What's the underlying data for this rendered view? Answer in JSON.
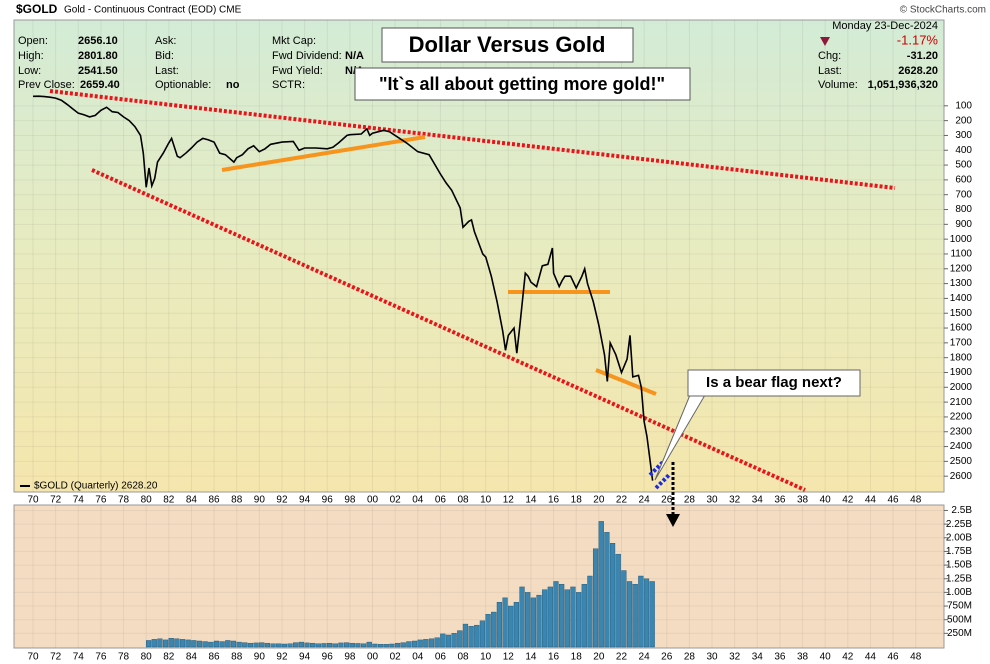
{
  "header": {
    "symbol": "$GOLD",
    "description": "Gold - Continuous Contract (EOD) CME",
    "credit": "© StockCharts.com",
    "date": "Monday 23-Dec-2024",
    "change_pct": "-1.17%"
  },
  "info": [
    {
      "label": "Open:",
      "value": "2656.10"
    },
    {
      "label": "High:",
      "value": "2801.80"
    },
    {
      "label": "Low:",
      "value": "2541.50"
    },
    {
      "label": "Prev Close:",
      "value": "2659.40"
    },
    {
      "label": "Ask:"
    },
    {
      "label": "Bid:"
    },
    {
      "label": "Last:"
    },
    {
      "label": "Optionable:",
      "value": "no"
    },
    {
      "label": "Mkt Cap:"
    },
    {
      "label": "Fwd Dividend:",
      "value": "N/A"
    },
    {
      "label": "Fwd Yield:",
      "value": "N/A"
    },
    {
      "label": "SCTR:"
    },
    {
      "label": "Chg:",
      "value": "-31.20"
    },
    {
      "label": "Last:",
      "value": "2628.20"
    },
    {
      "label": "Volume:",
      "value": "1,051,936,320"
    }
  ],
  "annotations": {
    "title": "Dollar Versus Gold",
    "quote": "\"It`s all about getting more gold!\"",
    "callout": "Is a bear flag next?"
  },
  "chart_data": [
    {
      "type": "line",
      "yinverted": true,
      "grid": true,
      "xlim": [
        1968.32,
        2050.5
      ],
      "xticks": [
        {
          "value": 1970,
          "label": "70"
        },
        {
          "value": 1972,
          "label": "72"
        },
        {
          "value": 1974,
          "label": "74"
        },
        {
          "value": 1976,
          "label": "76"
        },
        {
          "value": 1978,
          "label": "78"
        },
        {
          "value": 1980,
          "label": "80"
        },
        {
          "value": 1982,
          "label": "82"
        },
        {
          "value": 1984,
          "label": "84"
        },
        {
          "value": 1986,
          "label": "86"
        },
        {
          "value": 1988,
          "label": "88"
        },
        {
          "value": 1990,
          "label": "90"
        },
        {
          "value": 1992,
          "label": "92"
        },
        {
          "value": 1994,
          "label": "94"
        },
        {
          "value": 1996,
          "label": "96"
        },
        {
          "value": 1998,
          "label": "98"
        },
        {
          "value": 2000,
          "label": "00"
        },
        {
          "value": 2002,
          "label": "02"
        },
        {
          "value": 2004,
          "label": "04"
        },
        {
          "value": 2006,
          "label": "06"
        },
        {
          "value": 2008,
          "label": "08"
        },
        {
          "value": 2010,
          "label": "10"
        },
        {
          "value": 2012,
          "label": "12"
        },
        {
          "value": 2014,
          "label": "14"
        },
        {
          "value": 2016,
          "label": "16"
        },
        {
          "value": 2018,
          "label": "18"
        },
        {
          "value": 2020,
          "label": "20"
        },
        {
          "value": 2022,
          "label": "22"
        },
        {
          "value": 2024,
          "label": "24"
        },
        {
          "value": 2026,
          "label": "26"
        },
        {
          "value": 2028,
          "label": "28"
        },
        {
          "value": 2030,
          "label": "30"
        },
        {
          "value": 2032,
          "label": "32"
        },
        {
          "value": 2034,
          "label": "34"
        },
        {
          "value": 2036,
          "label": "36"
        },
        {
          "value": 2038,
          "label": "38"
        },
        {
          "value": 2040,
          "label": "40"
        },
        {
          "value": 2042,
          "label": "42"
        },
        {
          "value": 2044,
          "label": "44"
        },
        {
          "value": 2046,
          "label": "46"
        },
        {
          "value": 2048,
          "label": "48"
        }
      ],
      "ylim": [
        0,
        2700
      ],
      "yticks": [
        100,
        200,
        300,
        400,
        500,
        600,
        700,
        800,
        900,
        1000,
        1100,
        1200,
        1300,
        1400,
        1500,
        1600,
        1700,
        1800,
        1900,
        2000,
        2100,
        2200,
        2300,
        2400,
        2500,
        2600
      ],
      "x": [
        1970,
        1970.5,
        1971,
        1971.5,
        1972,
        1972.5,
        1973,
        1973.5,
        1974,
        1974.5,
        1975,
        1975.5,
        1976,
        1976.5,
        1977,
        1977.5,
        1978,
        1978.5,
        1979,
        1979.5,
        1979.75,
        1980,
        1980.25,
        1980.5,
        1980.75,
        1981,
        1981.5,
        1982,
        1982.25,
        1982.75,
        1983,
        1983.5,
        1984,
        1984.5,
        1985,
        1985.5,
        1986,
        1986.5,
        1987,
        1987.75,
        1988,
        1988.5,
        1989,
        1989.5,
        1990,
        1990.5,
        1991,
        1992,
        1993,
        1993.5,
        1994,
        1995,
        1996,
        1996.5,
        1997,
        1997.75,
        1998,
        1999,
        1999.5,
        1999.75,
        2000,
        2001,
        2001.5,
        2002,
        2003,
        2004,
        2005,
        2006,
        2006.5,
        2007,
        2007.75,
        2008,
        2008.5,
        2008.75,
        2009,
        2009.75,
        2010,
        2010.5,
        2011,
        2011.5,
        2011.75,
        2012,
        2012.5,
        2012.75,
        2013,
        2013.5,
        2013.75,
        2014,
        2014.5,
        2015,
        2015.5,
        2015.9,
        2016,
        2016.5,
        2016.75,
        2017,
        2017.5,
        2018,
        2018.5,
        2018.75,
        2019,
        2019.5,
        2019.75,
        2020,
        2020.5,
        2020.75,
        2021,
        2021.5,
        2022,
        2022.5,
        2022.75,
        2023,
        2023.5,
        2023.75,
        2024,
        2024.25,
        2024.5,
        2024.75
      ],
      "series": [
        {
          "name": "$GOLD (Quarterly) 2628.20",
          "color": "#000000",
          "values": [
            36,
            35,
            38,
            42,
            48,
            62,
            90,
            120,
            150,
            160,
            175,
            165,
            130,
            110,
            140,
            145,
            175,
            200,
            240,
            300,
            420,
            650,
            520,
            640,
            590,
            480,
            420,
            350,
            320,
            440,
            450,
            420,
            385,
            345,
            320,
            330,
            345,
            420,
            430,
            480,
            450,
            430,
            390,
            370,
            410,
            390,
            360,
            345,
            340,
            400,
            385,
            385,
            390,
            380,
            350,
            300,
            295,
            290,
            255,
            300,
            285,
            265,
            275,
            300,
            350,
            410,
            430,
            560,
            620,
            670,
            790,
            920,
            880,
            870,
            950,
            1100,
            1120,
            1250,
            1420,
            1620,
            1750,
            1650,
            1600,
            1770,
            1600,
            1230,
            1250,
            1290,
            1320,
            1180,
            1170,
            1060,
            1230,
            1320,
            1280,
            1250,
            1250,
            1330,
            1250,
            1200,
            1300,
            1420,
            1500,
            1580,
            1780,
            1960,
            1700,
            1780,
            1900,
            1810,
            1650,
            1930,
            1920,
            2000,
            2230,
            2330,
            2480,
            2630
          ]
        }
      ]
    },
    {
      "type": "bar",
      "color": "#3a86b0",
      "grid": true,
      "xlim": [
        1968.32,
        2050.5
      ],
      "xticks": [
        {
          "value": 1970,
          "label": "70"
        },
        {
          "value": 1972,
          "label": "72"
        },
        {
          "value": 1974,
          "label": "74"
        },
        {
          "value": 1976,
          "label": "76"
        },
        {
          "value": 1978,
          "label": "78"
        },
        {
          "value": 1980,
          "label": "80"
        },
        {
          "value": 1982,
          "label": "82"
        },
        {
          "value": 1984,
          "label": "84"
        },
        {
          "value": 1986,
          "label": "86"
        },
        {
          "value": 1988,
          "label": "88"
        },
        {
          "value": 1990,
          "label": "90"
        },
        {
          "value": 1992,
          "label": "92"
        },
        {
          "value": 1994,
          "label": "94"
        },
        {
          "value": 1996,
          "label": "96"
        },
        {
          "value": 1998,
          "label": "98"
        },
        {
          "value": 2000,
          "label": "00"
        },
        {
          "value": 2002,
          "label": "02"
        },
        {
          "value": 2004,
          "label": "04"
        },
        {
          "value": 2006,
          "label": "06"
        },
        {
          "value": 2008,
          "label": "08"
        },
        {
          "value": 2010,
          "label": "10"
        },
        {
          "value": 2012,
          "label": "12"
        },
        {
          "value": 2014,
          "label": "14"
        },
        {
          "value": 2016,
          "label": "16"
        },
        {
          "value": 2018,
          "label": "18"
        },
        {
          "value": 2020,
          "label": "20"
        },
        {
          "value": 2022,
          "label": "22"
        },
        {
          "value": 2024,
          "label": "24"
        },
        {
          "value": 2026,
          "label": "26"
        },
        {
          "value": 2028,
          "label": "28"
        },
        {
          "value": 2030,
          "label": "30"
        },
        {
          "value": 2032,
          "label": "32"
        },
        {
          "value": 2034,
          "label": "34"
        },
        {
          "value": 2036,
          "label": "36"
        },
        {
          "value": 2038,
          "label": "38"
        },
        {
          "value": 2040,
          "label": "40"
        },
        {
          "value": 2042,
          "label": "42"
        },
        {
          "value": 2044,
          "label": "44"
        },
        {
          "value": 2046,
          "label": "46"
        },
        {
          "value": 2048,
          "label": "48"
        }
      ],
      "ylim": [
        0,
        2600
      ],
      "yticks": [
        {
          "value": 250,
          "label": "250M"
        },
        {
          "value": 500,
          "label": "500M"
        },
        {
          "value": 750,
          "label": "750M"
        },
        {
          "value": 1000,
          "label": "1.00B"
        },
        {
          "value": 1250,
          "label": "1.25B"
        },
        {
          "value": 1500,
          "label": "1.50B"
        },
        {
          "value": 1750,
          "label": "1.75B"
        },
        {
          "value": 2000,
          "label": "2.00B"
        },
        {
          "value": 2250,
          "label": "2.25B"
        },
        {
          "value": 2500,
          "label": "2.5B"
        }
      ],
      "x": [
        1980,
        1980.5,
        1981,
        1981.5,
        1982,
        1982.5,
        1983,
        1983.5,
        1984,
        1984.5,
        1985,
        1985.5,
        1986,
        1986.5,
        1987,
        1987.5,
        1988,
        1988.5,
        1989,
        1989.5,
        1990,
        1990.5,
        1991,
        1991.5,
        1992,
        1992.5,
        1993,
        1993.5,
        1994,
        1994.5,
        1995,
        1995.5,
        1996,
        1996.5,
        1997,
        1997.5,
        1998,
        1998.5,
        1999,
        1999.5,
        2000,
        2000.5,
        2001,
        2001.5,
        2002,
        2002.5,
        2003,
        2003.5,
        2004,
        2004.5,
        2005,
        2005.5,
        2006,
        2006.5,
        2007,
        2007.5,
        2008,
        2008.5,
        2009,
        2009.5,
        2010,
        2010.5,
        2011,
        2011.5,
        2012,
        2012.5,
        2013,
        2013.5,
        2014,
        2014.5,
        2015,
        2015.5,
        2016,
        2016.5,
        2017,
        2017.5,
        2018,
        2018.5,
        2019,
        2019.5,
        2020,
        2020.5,
        2021,
        2021.5,
        2022,
        2022.5,
        2023,
        2023.5,
        2024,
        2024.5
      ],
      "values": [
        120,
        140,
        150,
        130,
        160,
        150,
        140,
        130,
        120,
        110,
        100,
        90,
        110,
        100,
        120,
        110,
        90,
        80,
        70,
        75,
        80,
        70,
        60,
        60,
        55,
        60,
        80,
        90,
        75,
        70,
        60,
        65,
        70,
        60,
        75,
        80,
        70,
        65,
        60,
        90,
        55,
        50,
        50,
        55,
        70,
        80,
        100,
        110,
        130,
        140,
        150,
        170,
        240,
        220,
        250,
        300,
        420,
        380,
        400,
        480,
        600,
        640,
        820,
        900,
        750,
        820,
        1100,
        1000,
        900,
        950,
        1050,
        1100,
        1200,
        1150,
        1050,
        1100,
        1000,
        1150,
        1300,
        1800,
        2300,
        2100,
        1900,
        1700,
        1400,
        1200,
        1150,
        1300,
        1250,
        1200
      ]
    }
  ]
}
